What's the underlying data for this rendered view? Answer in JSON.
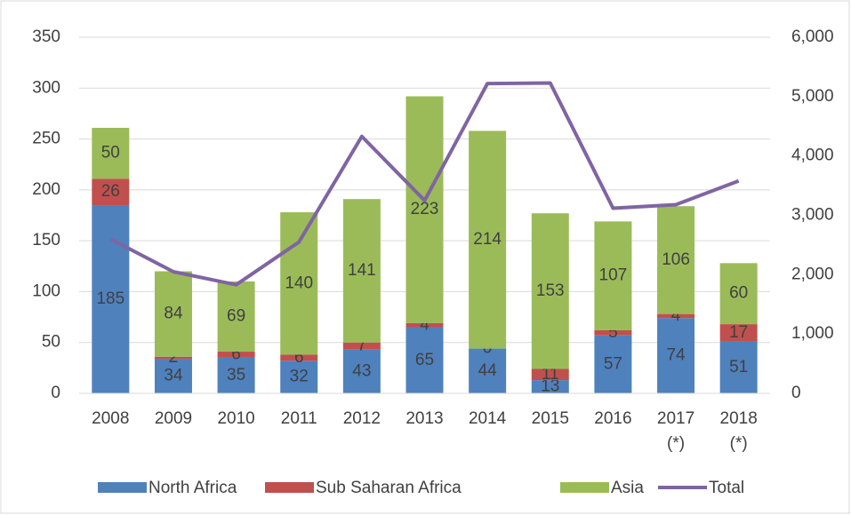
{
  "chart_data": {
    "type": "bar",
    "stacked": true,
    "categories": [
      "2008",
      "2009",
      "2010",
      "2011",
      "2012",
      "2013",
      "2014",
      "2015",
      "2016",
      "2017\n(*)",
      "2018\n(*)"
    ],
    "series": [
      {
        "name": "North Africa",
        "type": "bar",
        "color": "#4f81bd",
        "values": [
          185,
          34,
          35,
          32,
          43,
          65,
          44,
          13,
          57,
          74,
          51
        ]
      },
      {
        "name": "Sub Saharan Africa",
        "type": "bar",
        "color": "#c0504d",
        "values": [
          26,
          2,
          6,
          6,
          7,
          4,
          0,
          11,
          5,
          4,
          17
        ]
      },
      {
        "name": "Asia",
        "type": "bar",
        "color": "#9bbb59",
        "values": [
          50,
          84,
          69,
          140,
          141,
          223,
          214,
          153,
          107,
          106,
          60
        ]
      },
      {
        "name": "Total",
        "type": "line",
        "axis": "y2",
        "color": "#8064a2",
        "values": [
          2600,
          2050,
          1830,
          2550,
          4330,
          3250,
          5220,
          5230,
          3120,
          3180,
          3580
        ]
      }
    ],
    "data_labels": true,
    "ylim": [
      0,
      350
    ],
    "yticks": [
      0,
      50,
      100,
      150,
      200,
      250,
      300,
      350
    ],
    "y2lim": [
      0,
      6000
    ],
    "y2ticks": [
      0,
      {
        "value": 1000,
        "label": "1,000"
      },
      {
        "value": 2000,
        "label": "2,000"
      },
      {
        "value": 3000,
        "label": "3,000"
      },
      {
        "value": 4000,
        "label": "4,000"
      },
      {
        "value": 5000,
        "label": "5,000"
      },
      {
        "value": 6000,
        "label": "6,000"
      }
    ],
    "legend": "bottom"
  }
}
